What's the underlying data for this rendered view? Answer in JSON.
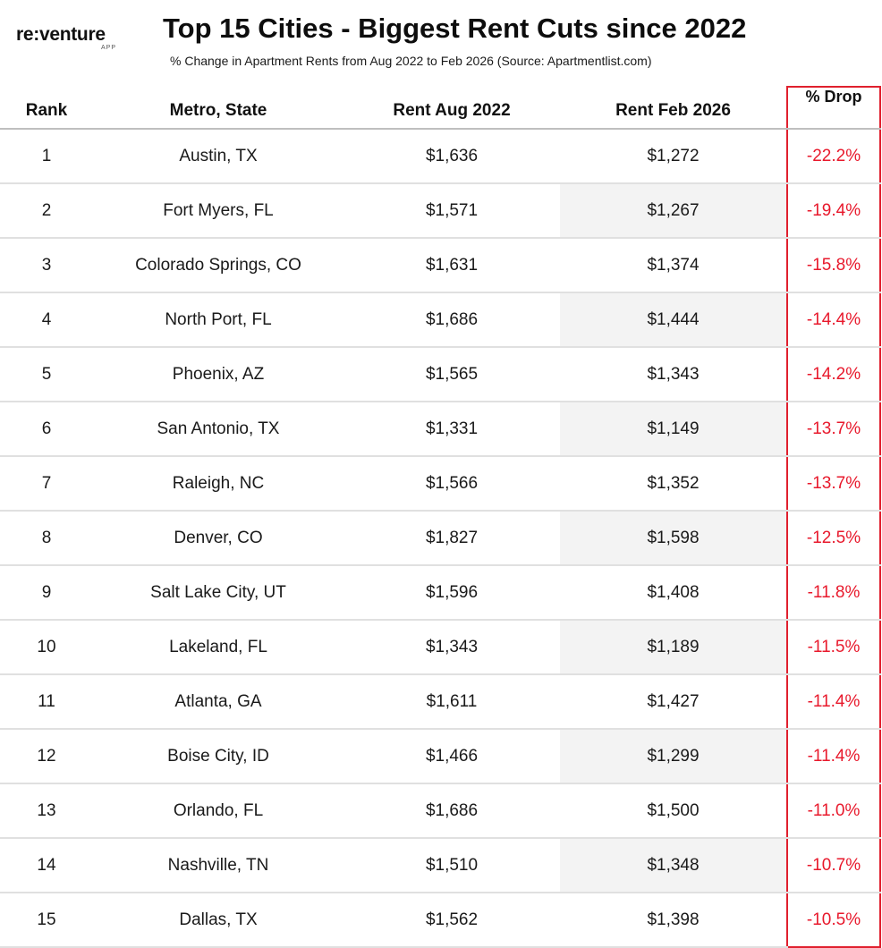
{
  "logo": {
    "brand": "re:venture",
    "sub": "APP"
  },
  "chart_data": {
    "type": "table",
    "title": "Top 15 Cities - Biggest Rent Cuts since 2022",
    "subtitle": "% Change in Apartment Rents from Aug 2022 to Feb 2026 (Source: Apartmentlist.com)",
    "columns": [
      "Rank",
      "Metro, State",
      "Rent Aug 2022",
      "Rent Feb 2026",
      "% Drop"
    ],
    "rows": [
      {
        "rank": "1",
        "metro": "Austin, TX",
        "aug": "$1,636",
        "feb": "$1,272",
        "drop": "-22.2%"
      },
      {
        "rank": "2",
        "metro": "Fort Myers, FL",
        "aug": "$1,571",
        "feb": "$1,267",
        "drop": "-19.4%"
      },
      {
        "rank": "3",
        "metro": "Colorado Springs, CO",
        "aug": "$1,631",
        "feb": "$1,374",
        "drop": "-15.8%"
      },
      {
        "rank": "4",
        "metro": "North Port, FL",
        "aug": "$1,686",
        "feb": "$1,444",
        "drop": "-14.4%"
      },
      {
        "rank": "5",
        "metro": "Phoenix, AZ",
        "aug": "$1,565",
        "feb": "$1,343",
        "drop": "-14.2%"
      },
      {
        "rank": "6",
        "metro": "San Antonio, TX",
        "aug": "$1,331",
        "feb": "$1,149",
        "drop": "-13.7%"
      },
      {
        "rank": "7",
        "metro": "Raleigh, NC",
        "aug": "$1,566",
        "feb": "$1,352",
        "drop": "-13.7%"
      },
      {
        "rank": "8",
        "metro": "Denver, CO",
        "aug": "$1,827",
        "feb": "$1,598",
        "drop": "-12.5%"
      },
      {
        "rank": "9",
        "metro": "Salt Lake City, UT",
        "aug": "$1,596",
        "feb": "$1,408",
        "drop": "-11.8%"
      },
      {
        "rank": "10",
        "metro": "Lakeland, FL",
        "aug": "$1,343",
        "feb": "$1,189",
        "drop": "-11.5%"
      },
      {
        "rank": "11",
        "metro": "Atlanta, GA",
        "aug": "$1,611",
        "feb": "$1,427",
        "drop": "-11.4%"
      },
      {
        "rank": "12",
        "metro": "Boise City, ID",
        "aug": "$1,466",
        "feb": "$1,299",
        "drop": "-11.4%"
      },
      {
        "rank": "13",
        "metro": "Orlando, FL",
        "aug": "$1,686",
        "feb": "$1,500",
        "drop": "-11.0%"
      },
      {
        "rank": "14",
        "metro": "Nashville, TN",
        "aug": "$1,510",
        "feb": "$1,348",
        "drop": "-10.7%"
      },
      {
        "rank": "15",
        "metro": "Dallas, TX",
        "aug": "$1,562",
        "feb": "$1,398",
        "drop": "-10.5%"
      }
    ],
    "colors": {
      "drop_text": "#e8192c",
      "highlight_border": "#e0202e",
      "shaded_cell": "#f3f3f3"
    }
  }
}
